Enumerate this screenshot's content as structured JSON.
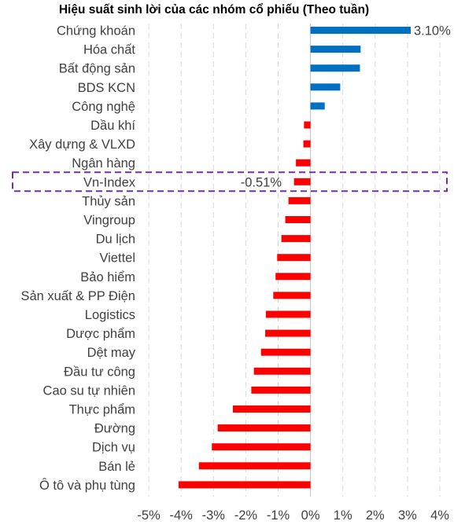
{
  "chart_data": {
    "type": "bar",
    "orientation": "horizontal",
    "title": "Hiệu suất sinh lời của các nhóm cổ phiếu (Theo tuần)",
    "categories": [
      "Chứng khoán",
      "Hóa chất",
      "Bất động sản",
      "BDS KCN",
      "Công nghệ",
      "Dầu khí",
      "Xây dựng & VLXD",
      "Ngân hàng",
      "Vn-Index",
      "Thủy sản",
      "Vingroup",
      "Du lịch",
      "Viettel",
      "Bảo hiểm",
      "Sản xuất & PP Điện",
      "Logistics",
      "Dược phẩm",
      "Dệt may",
      "Đầu tư công",
      "Cao su tự nhiên",
      "Thực phẩm",
      "Đường",
      "Dịch vụ",
      "Bán lẻ",
      "Ô tô và phụ tùng"
    ],
    "values": [
      3.1,
      1.55,
      1.53,
      0.92,
      0.44,
      -0.2,
      -0.22,
      -0.45,
      -0.51,
      -0.68,
      -0.78,
      -0.9,
      -1.03,
      -1.08,
      -1.15,
      -1.38,
      -1.4,
      -1.53,
      -1.75,
      -1.83,
      -2.4,
      -2.87,
      -3.05,
      -3.45,
      -4.08
    ],
    "data_labels": [
      {
        "category": "Chứng khoán",
        "text": "3.10%"
      },
      {
        "category": "Vn-Index",
        "text": "-0.51%"
      }
    ],
    "highlight": "Vn-Index",
    "xlim": [
      -5,
      4
    ],
    "x_ticks": [
      "-5%",
      "-4%",
      "-3%",
      "-2%",
      "-1%",
      "0%",
      "1%",
      "2%",
      "3%",
      "4%"
    ],
    "x_tick_values": [
      -5,
      -4,
      -3,
      -2,
      -1,
      0,
      1,
      2,
      3,
      4
    ],
    "grid": "vertical dashed",
    "colors": {
      "positive": "#0070c0",
      "negative": "#ff0000",
      "highlight_box": "#7030a0",
      "grid": "#d9d9d9",
      "axis": "#bfbfbf",
      "text": "#404040"
    }
  }
}
